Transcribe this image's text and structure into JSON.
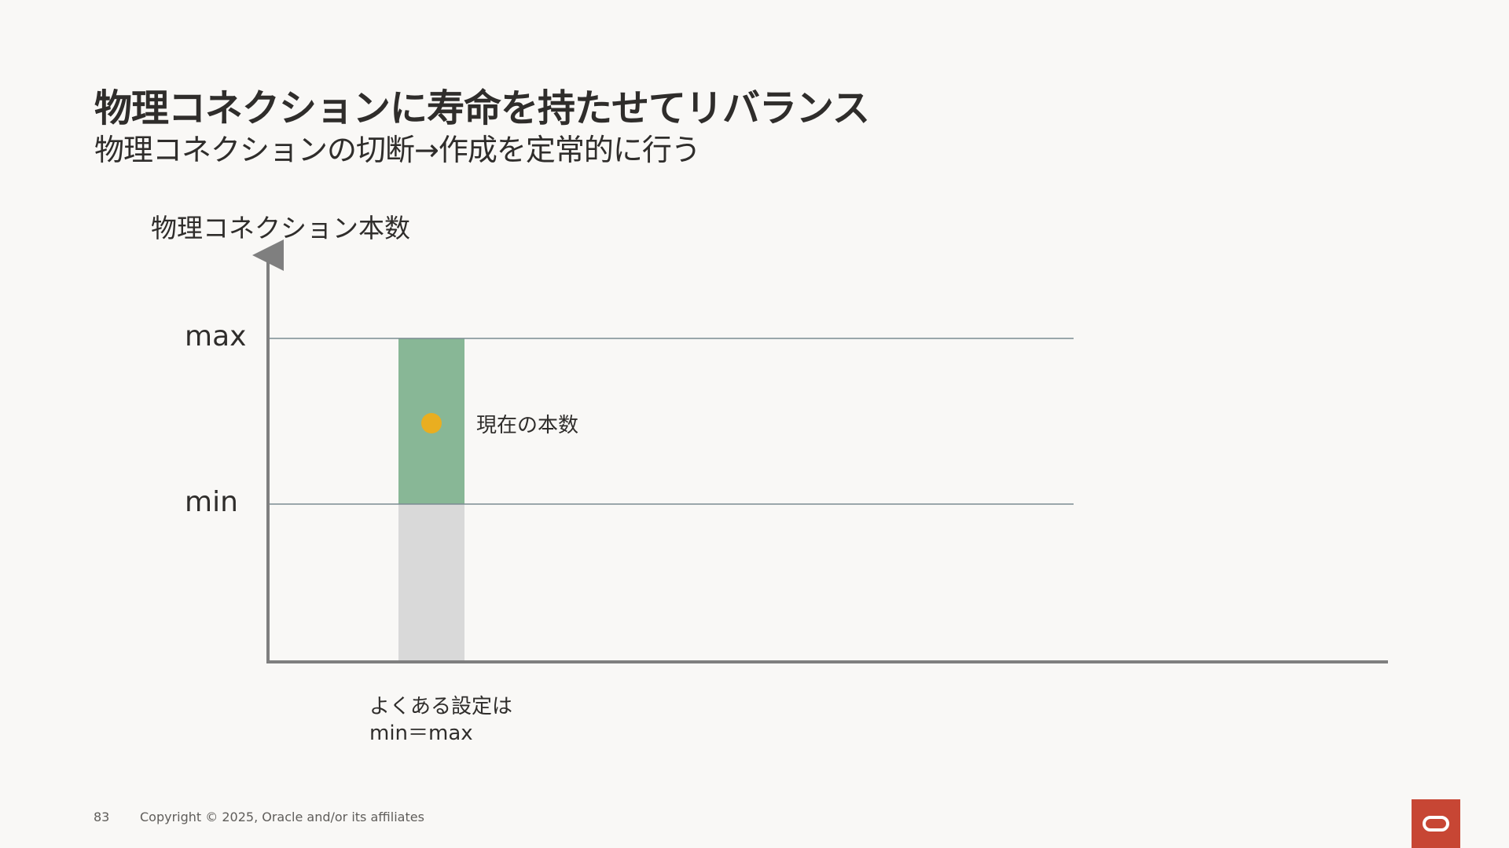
{
  "slide": {
    "title": "物理コネクションに寿命を持たせてリバランス",
    "subtitle": "物理コネクションの切断→作成を定常的に行う"
  },
  "diagram": {
    "y_axis_label": "物理コネクション本数",
    "max_label": "max",
    "min_label": "min",
    "current_count_label": "現在の本数",
    "note_line1": "よくある設定は",
    "note_line2": "min＝max",
    "colors": {
      "axis": "#7f7f7f",
      "reference_line": "#7b8c92",
      "pool_range_fill": "#88b796",
      "below_min_fill": "#d9d9d9",
      "current_marker": "#e9ae20"
    }
  },
  "footer": {
    "page_number": "83",
    "copyright": "Copyright © 2025, Oracle and/or its affiliates"
  },
  "logo": {
    "name": "oracle-logo",
    "color": "#c74634"
  }
}
